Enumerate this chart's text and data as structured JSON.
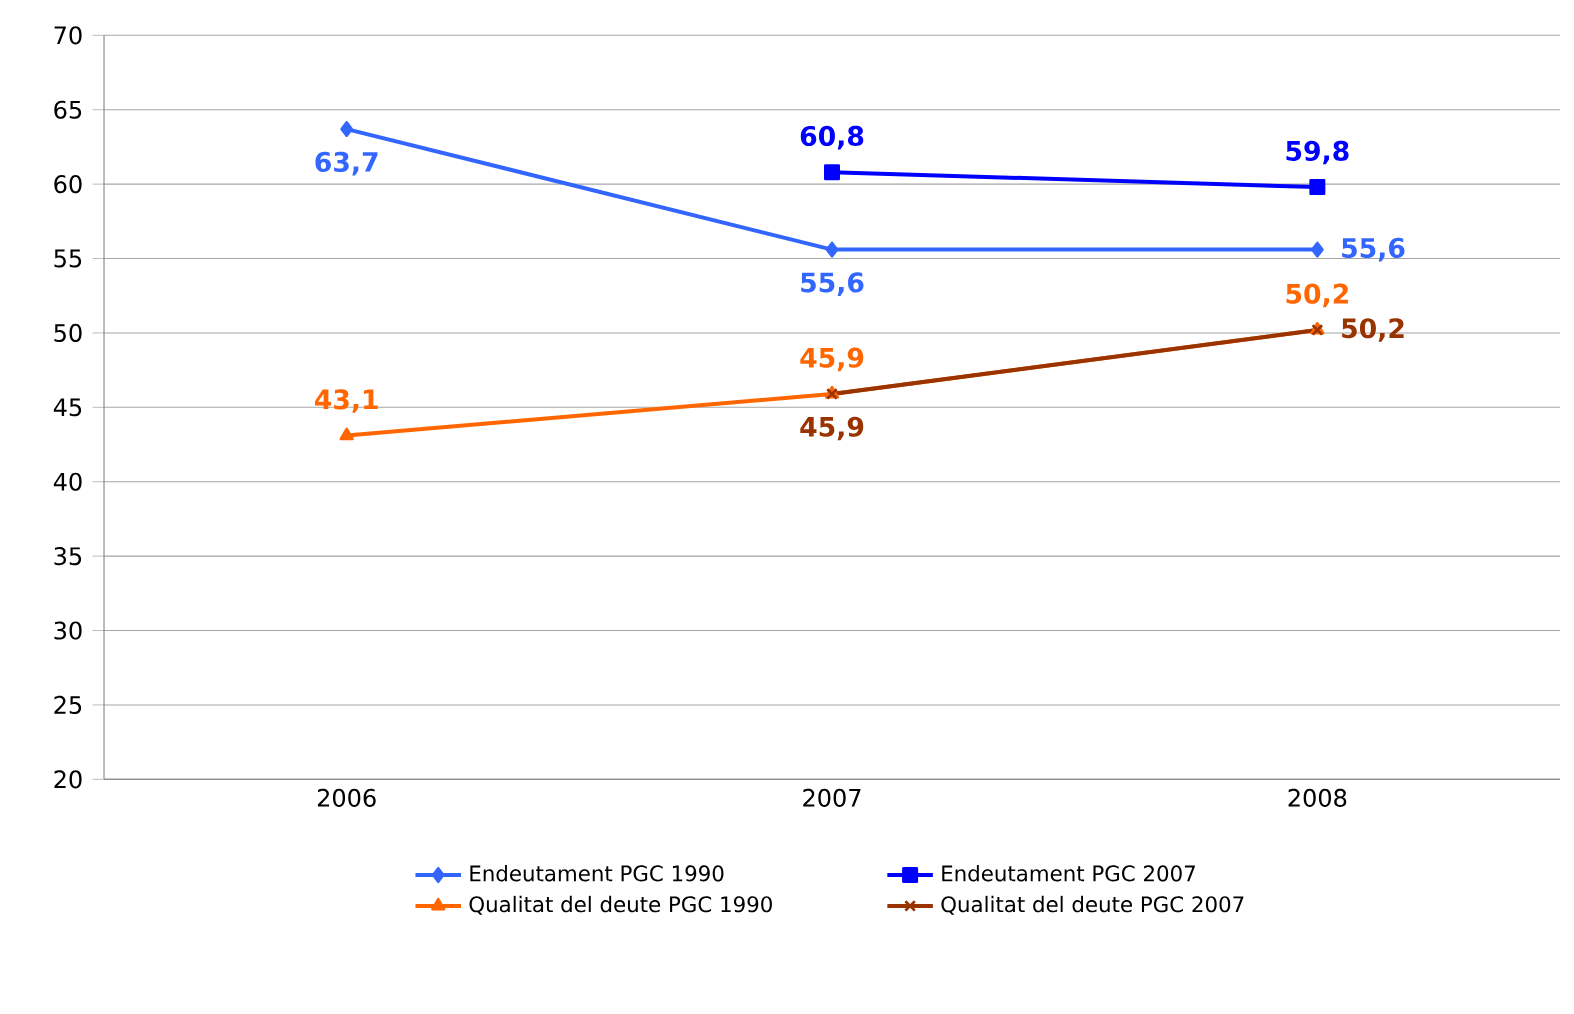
{
  "chart_data": {
    "type": "line",
    "categories": [
      "2006",
      "2007",
      "2008"
    ],
    "series": [
      {
        "name": "Endeutament PGC 1990",
        "color": "#3366ff",
        "marker": "diamond",
        "values": [
          63.7,
          55.6,
          55.6
        ],
        "value_labels": [
          "63,7",
          "55,6",
          "55,6"
        ]
      },
      {
        "name": "Endeutament PGC 2007",
        "color": "#0000ff",
        "marker": "square",
        "values": [
          null,
          60.8,
          59.8
        ],
        "value_labels": [
          null,
          "60,8",
          "59,8"
        ]
      },
      {
        "name": "Qualitat del deute PGC 1990",
        "color": "#ff6600",
        "marker": "triangle",
        "values": [
          43.1,
          45.9,
          50.2
        ],
        "value_labels": [
          "43,1",
          "45,9",
          "50,2"
        ]
      },
      {
        "name": "Qualitat del deute PGC 2007",
        "color": "#993300",
        "marker": "cross",
        "values": [
          null,
          45.9,
          50.2
        ],
        "value_labels": [
          null,
          "45,9",
          "50,2"
        ]
      }
    ],
    "ylim": [
      20,
      70
    ],
    "yticks": [
      20,
      25,
      30,
      35,
      40,
      45,
      50,
      55,
      60,
      65,
      70
    ],
    "grid": "y",
    "legend": "bottom"
  }
}
